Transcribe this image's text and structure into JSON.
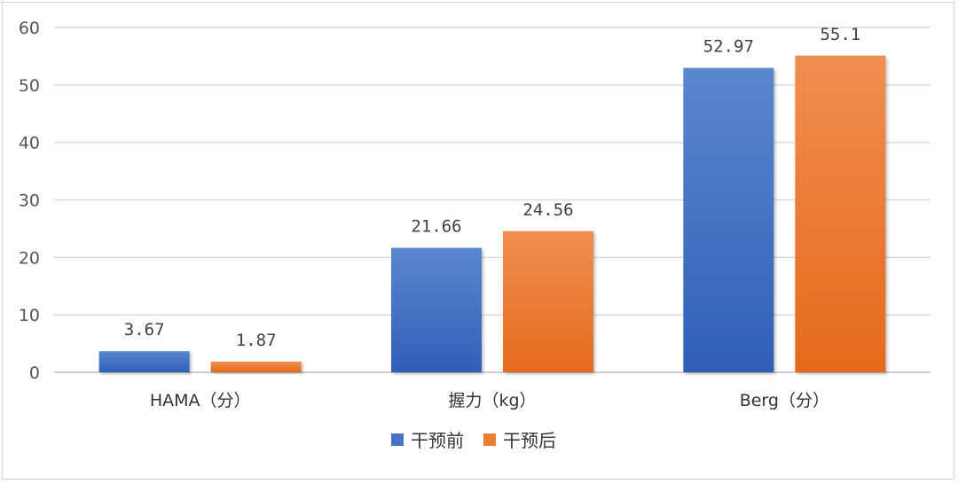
{
  "chart_data": {
    "type": "bar",
    "title": "",
    "xlabel": "",
    "ylabel": "",
    "categories": [
      "HAMA（分）",
      "握力（kg）",
      "Berg（分）"
    ],
    "series": [
      {
        "name": "干预前",
        "values": [
          3.67,
          21.66,
          52.97
        ],
        "labels": [
          "3.67",
          "21.66",
          "52.97"
        ],
        "color": "#4472C4"
      },
      {
        "name": "干预后",
        "values": [
          1.87,
          24.56,
          55.1
        ],
        "labels": [
          "1.87",
          "24.56",
          "55.1"
        ],
        "color": "#ED7D31"
      }
    ],
    "ylim": [
      0,
      60
    ],
    "yticks": [
      "0",
      "10",
      "20",
      "30",
      "40",
      "50",
      "60"
    ],
    "grid": true,
    "legend_position": "bottom"
  }
}
